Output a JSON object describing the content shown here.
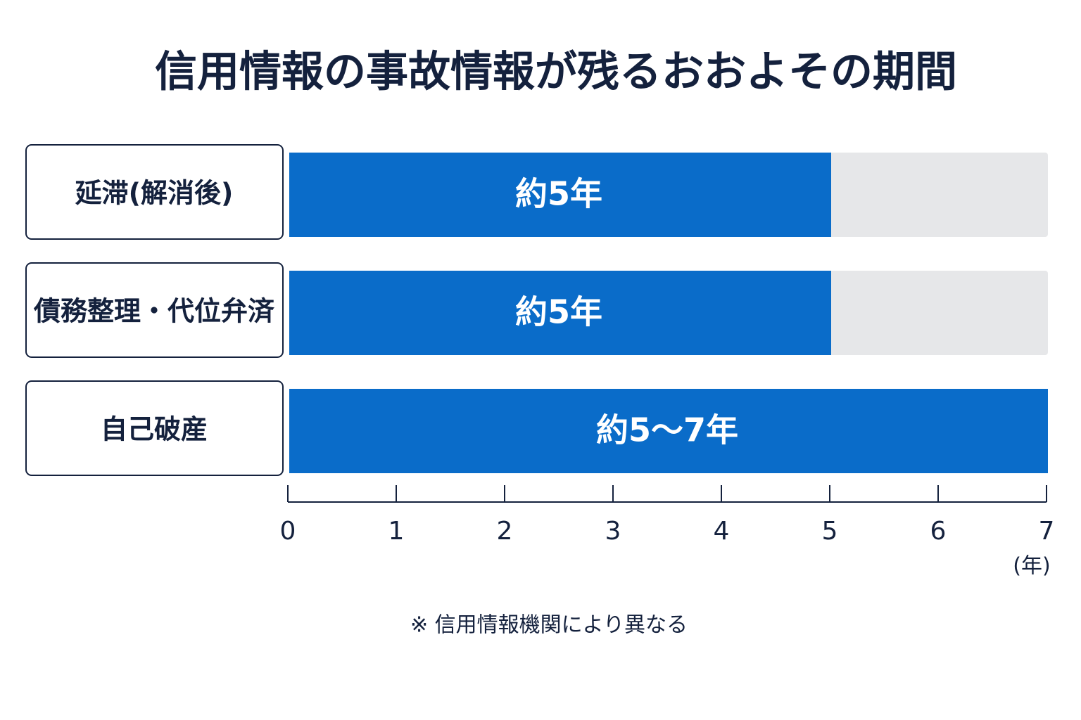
{
  "chart_data": {
    "type": "bar",
    "orientation": "horizontal",
    "title": "信用情報の事故情報が残るおおよその期間",
    "categories": [
      "延滞(解消後)",
      "債務整理・代位弁済",
      "自己破産"
    ],
    "values": [
      5,
      5,
      7
    ],
    "value_labels": [
      "約5年",
      "約5年",
      "約5〜7年"
    ],
    "color": "#0a6cc9",
    "xlim": [
      0,
      7
    ],
    "xticks": [
      0,
      1,
      2,
      3,
      4,
      5,
      6,
      7
    ],
    "x_label": "(年)",
    "note": "※ 信用情報機関により異なる"
  }
}
